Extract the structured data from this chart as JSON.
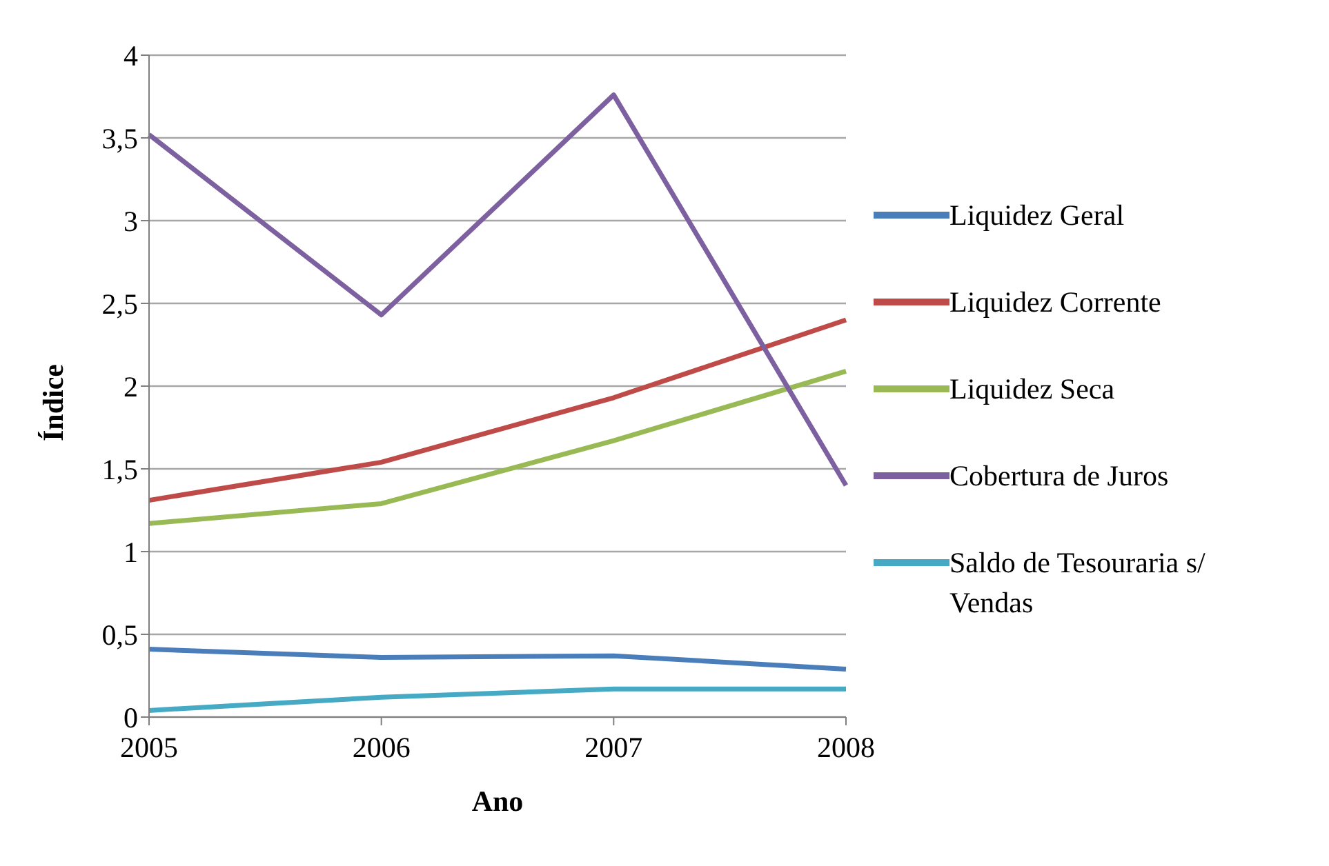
{
  "chart_data": {
    "type": "line",
    "xlabel": "Ano",
    "ylabel": "Índice",
    "categories": [
      "2005",
      "2006",
      "2007",
      "2008"
    ],
    "series": [
      {
        "name": "Liquidez Geral",
        "color": "#4a7ebb",
        "values": [
          0.41,
          0.36,
          0.37,
          0.29
        ]
      },
      {
        "name": "Liquidez Corrente",
        "color": "#be4b48",
        "values": [
          1.31,
          1.54,
          1.93,
          2.4
        ]
      },
      {
        "name": "Liquidez Seca",
        "color": "#98b954",
        "values": [
          1.17,
          1.29,
          1.67,
          2.09
        ]
      },
      {
        "name": "Cobertura de Juros",
        "color": "#7d60a0",
        "values": [
          3.52,
          2.43,
          3.76,
          1.4
        ]
      },
      {
        "name": "Saldo de Tesouraria s/ Vendas",
        "color": "#46aac5",
        "values": [
          0.04,
          0.12,
          0.17,
          0.17
        ]
      }
    ],
    "ylim": [
      0,
      4
    ],
    "yticks": [
      0,
      {
        "value": 0.5,
        "label": "0,5"
      },
      1,
      {
        "value": 1.5,
        "label": "1,5"
      },
      2,
      {
        "value": 2.5,
        "label": "2,5"
      },
      3,
      {
        "value": 3.5,
        "label": "3,5"
      },
      4
    ],
    "grid": "y",
    "legend": "right",
    "marker": "none",
    "line_style": "solid"
  }
}
